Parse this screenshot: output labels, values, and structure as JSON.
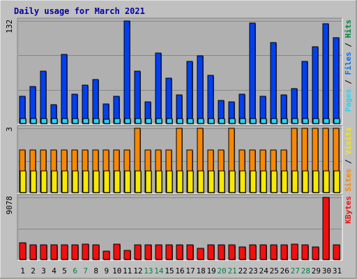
{
  "chart_data": {
    "type": "bar",
    "title": "Daily usage for March 2021",
    "categories": [
      "1",
      "2",
      "3",
      "4",
      "5",
      "6",
      "7",
      "8",
      "9",
      "10",
      "11",
      "12",
      "13",
      "14",
      "15",
      "16",
      "17",
      "18",
      "19",
      "20",
      "21",
      "22",
      "23",
      "24",
      "25",
      "26",
      "27",
      "28",
      "29",
      "30",
      "31"
    ],
    "weekend_days": [
      6,
      7,
      13,
      14,
      20,
      21,
      27,
      28
    ],
    "colors": {
      "background": "#c0c0c0",
      "panel": "#b0b0b0",
      "title": "#0000a0",
      "hits": "#0040f0",
      "files": "#0070f0",
      "pages": "#30d0f0",
      "visits": "#f8e800",
      "sites": "#f88800",
      "kbytes": "#f01010",
      "weekday_label": "#000000",
      "weekend_label": "#008040",
      "slash": "#000000"
    },
    "panels": [
      {
        "id": "hits_panel",
        "max_label": "132",
        "ylim": [
          0,
          132
        ],
        "legend": [
          {
            "text": "Pages",
            "color": "#30d0f0"
          },
          {
            "text": " / ",
            "color": "#000000"
          },
          {
            "text": "Files",
            "color": "#0070f0"
          },
          {
            "text": " / ",
            "color": "#000000"
          },
          {
            "text": "Hits",
            "color": "#008040"
          }
        ],
        "series": [
          {
            "name": "Hits",
            "values": [
              35,
              48,
              67,
              24,
              89,
              38,
              49,
              57,
              25,
              35,
              132,
              67,
              28,
              91,
              58,
              37,
              80,
              87,
              62,
              30,
              28,
              38,
              129,
              35,
              104,
              37,
              45,
              80,
              99,
              128,
              110
            ]
          },
          {
            "name": "Pages",
            "values": [
              6,
              6,
              6,
              6,
              6,
              6,
              6,
              6,
              5,
              6,
              6,
              6,
              6,
              6,
              6,
              6,
              6,
              6,
              6,
              6,
              6,
              6,
              6,
              6,
              6,
              6,
              6,
              6,
              6,
              6,
              6
            ]
          }
        ]
      },
      {
        "id": "visits_panel",
        "max_label": "3",
        "ylim": [
          0,
          3
        ],
        "legend": [
          {
            "text": "Sites",
            "color": "#f88800"
          },
          {
            "text": " / ",
            "color": "#000000"
          },
          {
            "text": "Visits",
            "color": "#f8e800"
          }
        ],
        "series": [
          {
            "name": "Sites",
            "values": [
              2,
              2,
              2,
              2,
              2,
              2,
              2,
              2,
              2,
              2,
              2,
              3,
              2,
              2,
              2,
              3,
              2,
              3,
              2,
              2,
              3,
              2,
              2,
              2,
              2,
              2,
              3,
              3,
              3,
              3,
              3
            ]
          },
          {
            "name": "Visits",
            "values": [
              1,
              1,
              1,
              1,
              1,
              1,
              1,
              1,
              1,
              1,
              1,
              1,
              1,
              1,
              1,
              1,
              1,
              1,
              1,
              1,
              1,
              1,
              1,
              1,
              1,
              1,
              1,
              1,
              1,
              1,
              1
            ]
          }
        ]
      },
      {
        "id": "kbytes_panel",
        "max_label": "9078",
        "ylim": [
          0,
          9078
        ],
        "legend": [
          {
            "text": "KBytes",
            "color": "#f01010"
          }
        ],
        "series": [
          {
            "name": "KBytes",
            "values": [
              2400,
              2100,
              2100,
              2100,
              2100,
              2100,
              2200,
              2100,
              1200,
              2200,
              1300,
              2100,
              2100,
              2100,
              2100,
              2100,
              2100,
              1600,
              2100,
              2100,
              2100,
              1800,
              2100,
              2100,
              2100,
              2100,
              2200,
              2100,
              1800,
              9078,
              2100
            ]
          }
        ]
      }
    ]
  }
}
